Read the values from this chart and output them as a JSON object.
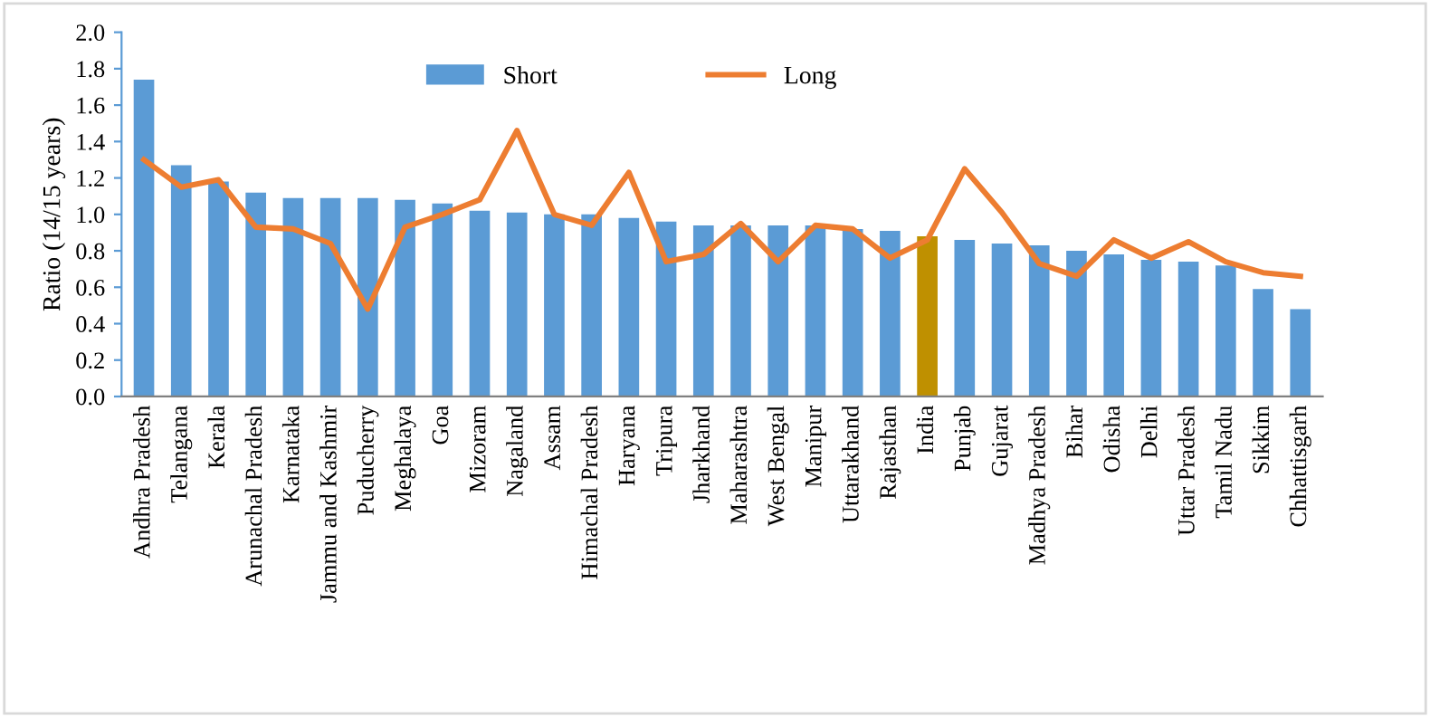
{
  "chart_data": {
    "type": "bar",
    "ylabel": "Ratio (14/15 years)",
    "categories": [
      "Andhra Pradesh",
      "Telangana",
      "Kerala",
      "Arunachal Pradesh",
      "Karnataka",
      "Jammu and Kashmir",
      "Puducherry",
      "Meghalaya",
      "Goa",
      "Mizoram",
      "Nagaland",
      "Assam",
      "Himachal Pradesh",
      "Haryana",
      "Tripura",
      "Jharkhand",
      "Maharashtra",
      "West Bengal",
      "Manipur",
      "Uttarakhand",
      "Rajasthan",
      "India",
      "Punjab",
      "Gujarat",
      "Madhya Pradesh",
      "Bihar",
      "Odisha",
      "Delhi",
      "Uttar Pradesh",
      "Tamil Nadu",
      "Sikkim",
      "Chhattisgarh"
    ],
    "series": [
      {
        "name": "Short",
        "color": "#5b9bd5",
        "colors": [
          "#5b9bd5",
          "#5b9bd5",
          "#5b9bd5",
          "#5b9bd5",
          "#5b9bd5",
          "#5b9bd5",
          "#5b9bd5",
          "#5b9bd5",
          "#5b9bd5",
          "#5b9bd5",
          "#5b9bd5",
          "#5b9bd5",
          "#5b9bd5",
          "#5b9bd5",
          "#5b9bd5",
          "#5b9bd5",
          "#5b9bd5",
          "#5b9bd5",
          "#5b9bd5",
          "#5b9bd5",
          "#5b9bd5",
          "#bf9000",
          "#5b9bd5",
          "#5b9bd5",
          "#5b9bd5",
          "#5b9bd5",
          "#5b9bd5",
          "#5b9bd5",
          "#5b9bd5",
          "#5b9bd5",
          "#5b9bd5",
          "#5b9bd5"
        ],
        "values": [
          1.74,
          1.27,
          1.18,
          1.12,
          1.09,
          1.09,
          1.09,
          1.08,
          1.06,
          1.02,
          1.01,
          1.0,
          1.0,
          0.98,
          0.96,
          0.94,
          0.94,
          0.94,
          0.94,
          0.92,
          0.91,
          0.88,
          0.86,
          0.84,
          0.83,
          0.8,
          0.78,
          0.75,
          0.74,
          0.72,
          0.59,
          0.48
        ]
      },
      {
        "name": "Long",
        "type": "line",
        "color": "#ed7d31",
        "values": [
          1.3,
          1.15,
          1.19,
          0.93,
          0.92,
          0.84,
          0.48,
          0.93,
          1.0,
          1.08,
          1.46,
          1.0,
          0.94,
          1.23,
          0.74,
          0.78,
          0.95,
          0.74,
          0.94,
          0.92,
          0.76,
          0.86,
          1.25,
          1.01,
          0.73,
          0.66,
          0.86,
          0.76,
          0.85,
          0.74,
          0.68,
          0.66
        ]
      }
    ],
    "ylim": [
      0,
      2.0
    ],
    "yticks": [
      {
        "value": 0,
        "label": "0.0"
      },
      {
        "value": 0.2,
        "label": "0.2"
      },
      {
        "value": 0.4,
        "label": "0.4"
      },
      {
        "value": 0.6,
        "label": "0.6"
      },
      {
        "value": 0.8,
        "label": "0.8"
      },
      {
        "value": 1.0,
        "label": "1.0"
      },
      {
        "value": 1.2,
        "label": "1.2"
      },
      {
        "value": 1.4,
        "label": "1.4"
      },
      {
        "value": 1.6,
        "label": "1.6"
      },
      {
        "value": 1.8,
        "label": "1.8"
      },
      {
        "value": 2.0,
        "label": "2.0"
      }
    ],
    "legend": "top",
    "grid": false,
    "marker": "none",
    "line_style": "solid"
  }
}
